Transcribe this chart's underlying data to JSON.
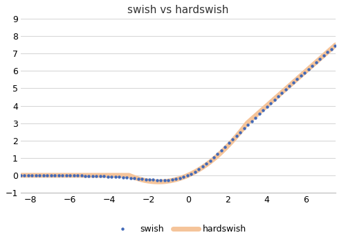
{
  "title": "swish vs hardswish",
  "xlim": [
    -8.5,
    7.5
  ],
  "ylim": [
    -1.0,
    9.0
  ],
  "xticks": [
    -8,
    -6,
    -4,
    -2,
    0,
    2,
    4,
    6
  ],
  "yticks": [
    -1,
    0,
    1,
    2,
    3,
    4,
    5,
    6,
    7,
    8,
    9
  ],
  "swish_color": "#4169b8",
  "hardswish_color": "#f5c49a",
  "background_color": "#ffffff",
  "grid_color": "#d8d8d8",
  "title_fontsize": 11,
  "legend_fontsize": 9,
  "swish_label": "swish",
  "hardswish_label": "hardswish"
}
